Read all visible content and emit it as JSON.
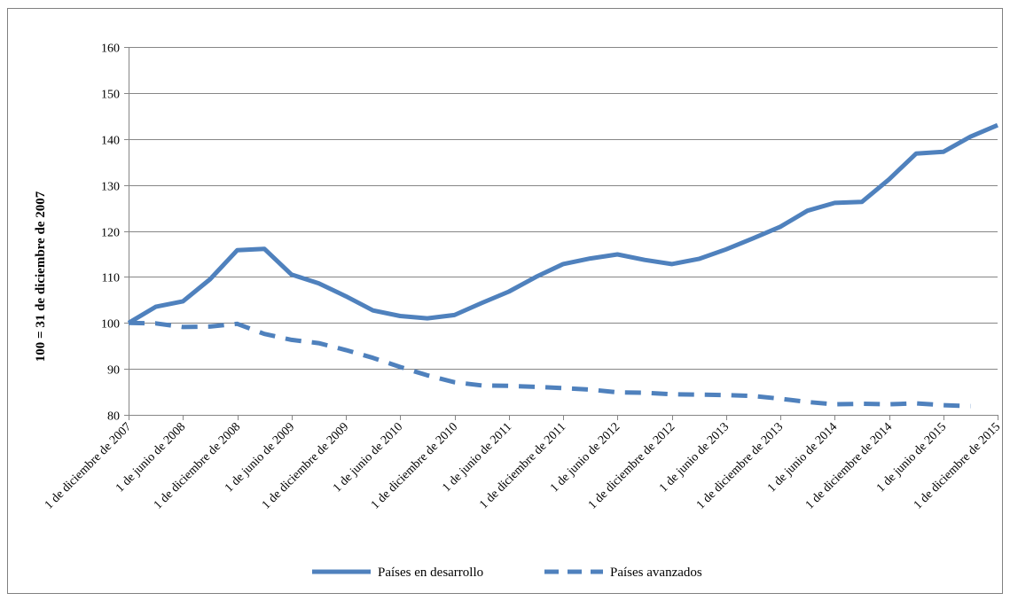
{
  "chart_data": {
    "type": "line",
    "title": "",
    "xlabel": "",
    "ylabel": "100 = 31 de diciembre de 2007",
    "ylim": [
      80,
      160
    ],
    "yticks": [
      80,
      90,
      100,
      110,
      120,
      130,
      140,
      150,
      160
    ],
    "grid": true,
    "legend_position": "bottom",
    "x_tick_labels": [
      "1 de diciembre de 2007",
      "1 de junio de 2008",
      "1 de diciembre de 2008",
      "1 de junio de 2009",
      "1 de diciembre de 2009",
      "1 de junio de 2010",
      "1 de diciembre de 2010",
      "1 de junio de 2011",
      "1 de diciembre de 2011",
      "1 de junio de 2012",
      "1 de diciembre de 2012",
      "1 de junio de 2013",
      "1 de diciembre de 2013",
      "1 de junio de 2014",
      "1 de diciembre de 2014",
      "1 de junio de 2015",
      "1 de diciembre de 2015"
    ],
    "x": [
      "2007-12",
      "2008-03",
      "2008-06",
      "2008-09",
      "2008-12",
      "2009-03",
      "2009-06",
      "2009-09",
      "2009-12",
      "2010-03",
      "2010-06",
      "2010-09",
      "2010-12",
      "2011-03",
      "2011-06",
      "2011-09",
      "2011-12",
      "2012-03",
      "2012-06",
      "2012-09",
      "2012-12",
      "2013-03",
      "2013-06",
      "2013-09",
      "2013-12",
      "2014-03",
      "2014-06",
      "2014-09",
      "2014-12",
      "2015-03",
      "2015-06",
      "2015-09",
      "2015-12"
    ],
    "series": [
      {
        "name": "Países en desarrollo",
        "style": "solid",
        "color": "#4f81bd",
        "values": [
          100,
          103.5,
          104.7,
          109.5,
          115.8,
          116.1,
          110.5,
          108.6,
          105.8,
          102.7,
          101.5,
          101,
          101.7,
          104.3,
          106.8,
          110,
          112.8,
          114,
          114.9,
          113.7,
          112.8,
          113.9,
          116,
          118.4,
          120.9,
          124.4,
          126.1,
          126.3,
          131.2,
          136.8,
          137.2,
          140.5,
          143
        ]
      },
      {
        "name": "Países avanzados",
        "style": "dashed",
        "color": "#4f81bd",
        "values": [
          100,
          99.9,
          99.1,
          99.2,
          99.8,
          97.6,
          96.3,
          95.6,
          94.1,
          92.4,
          90.4,
          88.6,
          87.1,
          86.4,
          86.3,
          86.1,
          85.8,
          85.5,
          84.9,
          84.8,
          84.5,
          84.4,
          84.3,
          84.1,
          83.5,
          82.8,
          82.3,
          82.4,
          82.3,
          82.5,
          82.1,
          81.9,
          null
        ]
      }
    ]
  }
}
